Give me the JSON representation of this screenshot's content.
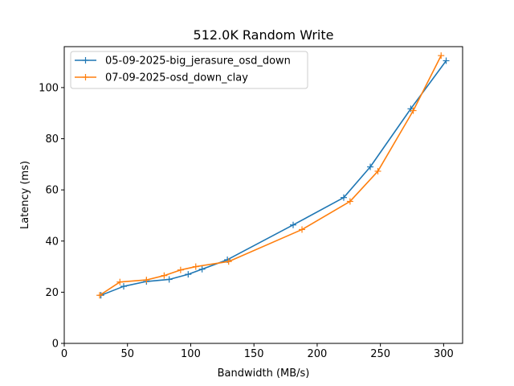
{
  "chart_data": {
    "type": "line",
    "title": "512.0K  Random Write",
    "xlabel": "Bandwidth (MB/s)",
    "ylabel": "Latency (ms)",
    "xlim": [
      0,
      315
    ],
    "ylim": [
      0,
      116
    ],
    "xticks": [
      0,
      50,
      100,
      150,
      200,
      250,
      300
    ],
    "yticks": [
      0,
      20,
      40,
      60,
      80,
      100
    ],
    "grid": false,
    "legend_position": "upper-left",
    "series": [
      {
        "name": "05-09-2025-big_jerasure_osd_down",
        "color": "#1f77b4",
        "marker": "plus",
        "points": [
          [
            29,
            18.8
          ],
          [
            47,
            22.3
          ],
          [
            65,
            24.2
          ],
          [
            83,
            25
          ],
          [
            98,
            27
          ],
          [
            109,
            29
          ],
          [
            129,
            32.7
          ],
          [
            181,
            46.3
          ],
          [
            221,
            57
          ],
          [
            242,
            69
          ],
          [
            274,
            91.7
          ],
          [
            302,
            110.5
          ]
        ]
      },
      {
        "name": "07-09-2025-osd_down_clay",
        "color": "#ff7f0e",
        "marker": "plus",
        "points": [
          [
            28,
            18.8
          ],
          [
            44,
            24
          ],
          [
            65,
            24.8
          ],
          [
            79,
            26.5
          ],
          [
            92,
            28.7
          ],
          [
            104,
            30
          ],
          [
            130,
            32
          ],
          [
            188,
            44.5
          ],
          [
            226,
            55.5
          ],
          [
            248,
            67.3
          ],
          [
            276,
            91
          ],
          [
            298,
            112.5
          ]
        ]
      }
    ]
  }
}
